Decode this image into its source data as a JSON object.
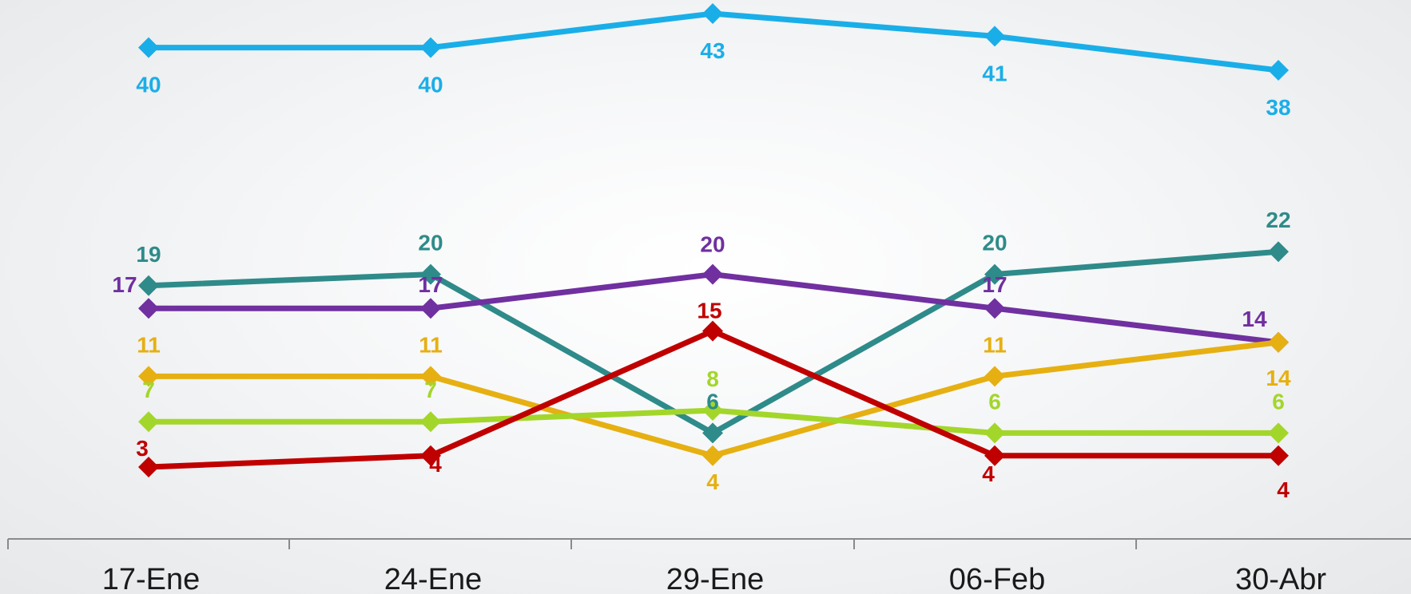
{
  "chart_data": {
    "type": "line",
    "categories": [
      "17-Ene",
      "24-Ene",
      "29-Ene",
      "06-Feb",
      "30-Abr"
    ],
    "series": [
      {
        "color": "#1aaee8",
        "values": [
          40,
          40,
          43,
          41,
          38
        ]
      },
      {
        "color": "#2e8b8a",
        "values": [
          19,
          20,
          6,
          20,
          22
        ]
      },
      {
        "color": "#7030a0",
        "values": [
          17,
          17,
          20,
          17,
          14
        ]
      },
      {
        "color": "#e6b012",
        "values": [
          11,
          11,
          4,
          11,
          14
        ]
      },
      {
        "color": "#a3d62a",
        "values": [
          7,
          7,
          8,
          6,
          6
        ]
      },
      {
        "color": "#c00000",
        "values": [
          3,
          4,
          15,
          4,
          4
        ]
      }
    ],
    "title": "",
    "xlabel": "",
    "ylabel": "",
    "grid": false,
    "legend": "none",
    "marker": "diamond"
  }
}
